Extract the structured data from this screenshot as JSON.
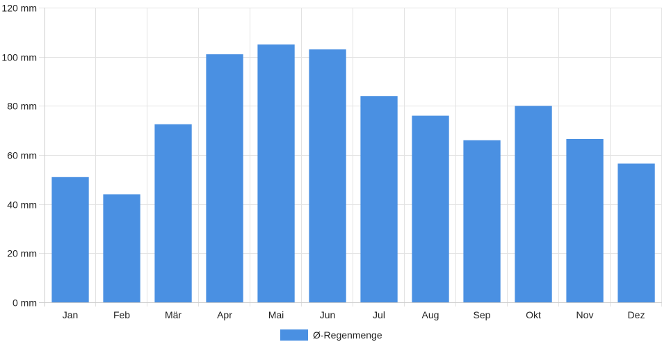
{
  "chart_data": {
    "type": "bar",
    "categories": [
      "Jan",
      "Feb",
      "Mär",
      "Apr",
      "Mai",
      "Jun",
      "Jul",
      "Aug",
      "Sep",
      "Okt",
      "Nov",
      "Dez"
    ],
    "series": [
      {
        "name": "Ø-Regenmenge",
        "color": "#4a90e2",
        "values": [
          51,
          44,
          72.5,
          101,
          105,
          103,
          84,
          76,
          66,
          80,
          66.5,
          56.5
        ]
      }
    ],
    "y_ticks": [
      "0 mm",
      "20 mm",
      "40 mm",
      "60 mm",
      "80 mm",
      "100 mm",
      "120 mm"
    ],
    "ylim": [
      0,
      120
    ],
    "y_unit": "mm",
    "grid": true,
    "legend_position": "bottom-center"
  }
}
